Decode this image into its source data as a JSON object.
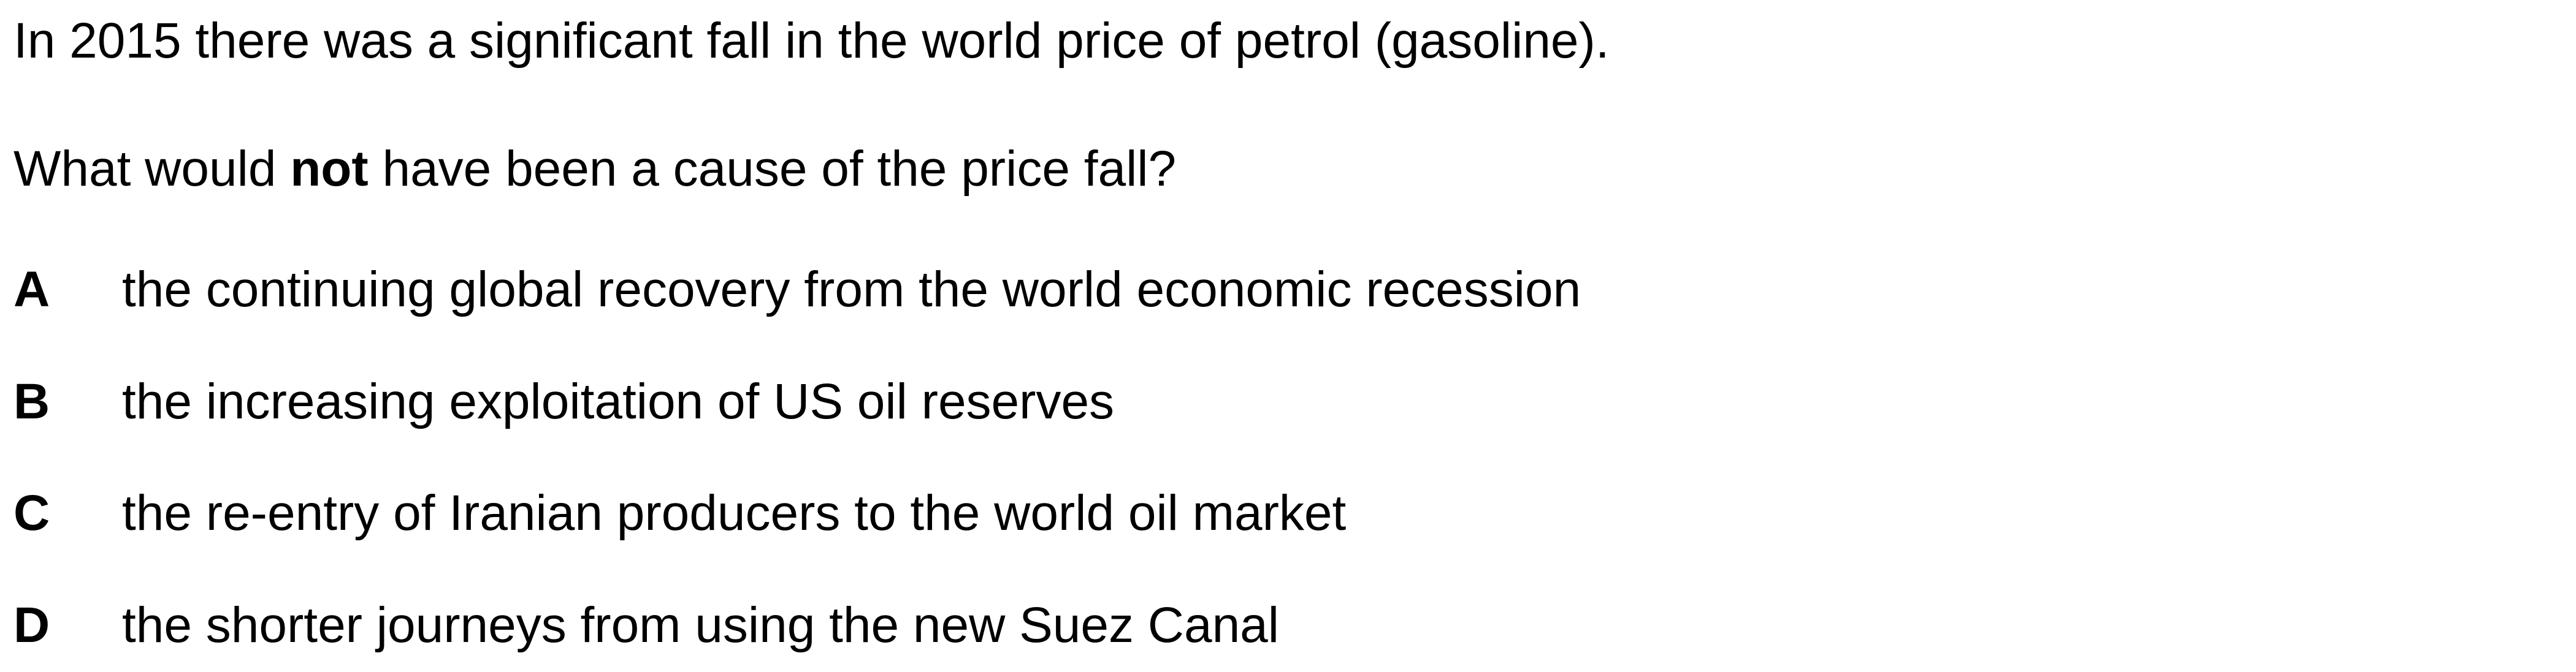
{
  "question": {
    "stem": "In 2015 there was a significant fall in the world price of petrol (gasoline).",
    "prompt_before": "What would ",
    "prompt_emphasis": "not",
    "prompt_after": " have been a cause of the price fall?"
  },
  "options": [
    {
      "letter": "A",
      "text": "the continuing global recovery from the world economic recession"
    },
    {
      "letter": "B",
      "text": "the increasing exploitation of US oil reserves"
    },
    {
      "letter": "C",
      "text": "the re-entry of Iranian producers to the world oil market"
    },
    {
      "letter": "D",
      "text": "the shorter journeys from using the new Suez Canal"
    }
  ]
}
